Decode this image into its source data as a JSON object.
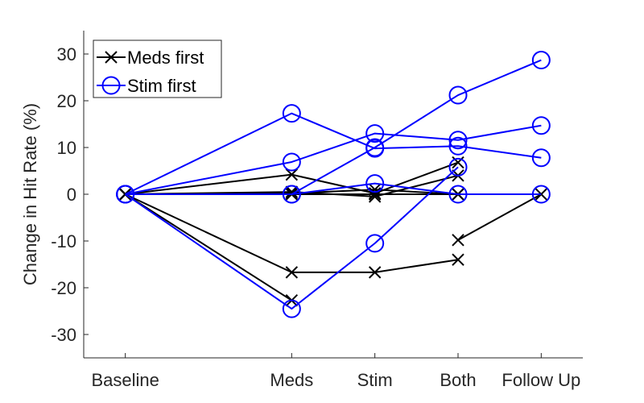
{
  "chart_data": {
    "type": "line",
    "categories": [
      "Baseline",
      "Meds",
      "Stim",
      "Both",
      "Follow Up"
    ],
    "x": [
      0,
      2,
      3,
      4,
      5
    ],
    "xlim": [
      -0.5,
      5.5
    ],
    "ylabel": "Change in Hit Rate (%)",
    "ylim": [
      -35,
      35
    ],
    "yticks": [
      -30,
      -20,
      -10,
      0,
      10,
      20,
      30
    ],
    "legend": {
      "placement": "top-left",
      "entries": [
        {
          "label": "Meds first",
          "marker": "x",
          "color": "#000000"
        },
        {
          "label": "Stim first",
          "marker": "o",
          "color": "#0000ff"
        }
      ]
    },
    "series": [
      {
        "group": "Meds first",
        "color": "#000000",
        "marker": "x",
        "values": [
          0,
          4.2,
          0.2,
          6.8,
          null
        ]
      },
      {
        "group": "Meds first",
        "color": "#000000",
        "marker": "x",
        "values": [
          0,
          0.5,
          -0.5,
          4.0,
          null
        ]
      },
      {
        "group": "Meds first",
        "color": "#000000",
        "marker": "x",
        "values": [
          0,
          0.2,
          1.0,
          0,
          null
        ]
      },
      {
        "group": "Meds first",
        "color": "#000000",
        "marker": "x",
        "values": [
          0,
          0,
          0,
          0,
          null
        ]
      },
      {
        "group": "Meds first",
        "color": "#000000",
        "marker": "x",
        "values": [
          0,
          -16.7,
          -16.7,
          -14.0,
          null
        ]
      },
      {
        "group": "Meds first",
        "color": "#000000",
        "marker": "x",
        "values": [
          0,
          -22.7,
          null,
          null,
          null
        ]
      },
      {
        "group": "Meds first",
        "color": "#000000",
        "marker": "x",
        "values": [
          null,
          null,
          null,
          -9.8,
          0
        ]
      },
      {
        "group": "Stim first",
        "color": "#0000ff",
        "marker": "o",
        "values": [
          0,
          17.3,
          9.8,
          10.3,
          7.8
        ]
      },
      {
        "group": "Stim first",
        "color": "#0000ff",
        "marker": "o",
        "values": [
          0,
          6.9,
          13.0,
          11.6,
          14.7
        ]
      },
      {
        "group": "Stim first",
        "color": "#0000ff",
        "marker": "o",
        "values": [
          0,
          0,
          10.0,
          21.2,
          28.7
        ]
      },
      {
        "group": "Stim first",
        "color": "#0000ff",
        "marker": "o",
        "values": [
          0,
          -24.5,
          -10.5,
          5.8,
          null
        ]
      },
      {
        "group": "Stim first",
        "color": "#0000ff",
        "marker": "o",
        "values": [
          0,
          0,
          2.3,
          0,
          0
        ]
      }
    ]
  }
}
